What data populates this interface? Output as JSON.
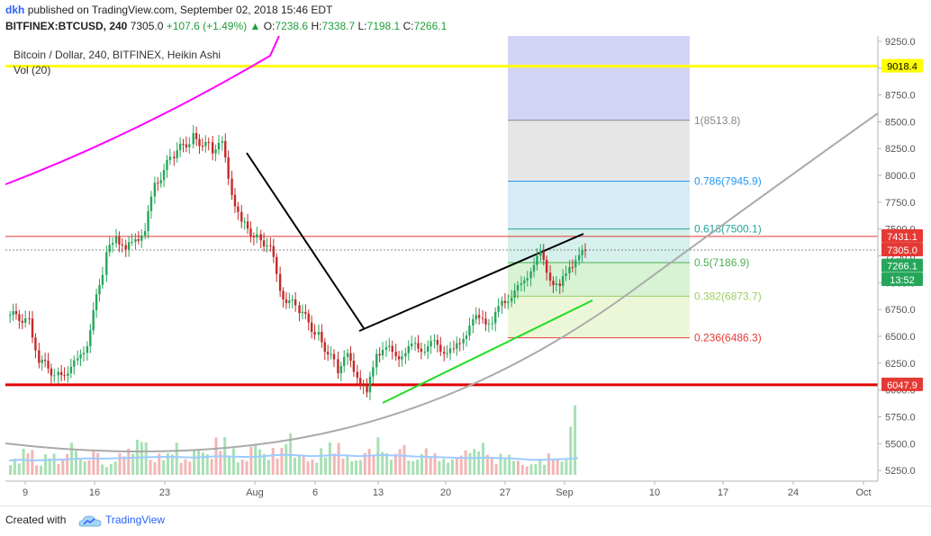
{
  "header": {
    "user": "dkh",
    "published_text": "published on TradingView.com, September 02, 2018 15:46 EDT",
    "symbol": "BITFINEX:BTCUSD, 240",
    "last": "7305.0",
    "change": "+107.6 (+1.49%)",
    "o_label": "O:",
    "o_value": "7238.6",
    "h_label": "H:",
    "h_value": "7338.7",
    "l_label": "L:",
    "l_value": "7198.1",
    "c_label": "C:",
    "c_value": "7266.1"
  },
  "colors": {
    "up_candle": "#26a65b",
    "down_candle": "#c62828",
    "volume_up": "#a8e0b4",
    "volume_down": "#f3b5b5",
    "volume_ma": "#9ecbff",
    "support_line": "#e00000",
    "resistance_line": "#ffff00",
    "magenta_curve": "#ff00ff",
    "green_trend": "#22dd22"
  },
  "chart_data": {
    "type": "line",
    "title": "Bitcoin / Dollar, 240, BITFINEX, Heikin Ashi",
    "subtitle": "Vol (20)",
    "ylim": [
      5150,
      9300
    ],
    "y_ticks": [
      "9250.0",
      "9000.0",
      "8750.0",
      "8500.0",
      "8250.0",
      "8000.0",
      "7750.0",
      "7500.0",
      "7250.0",
      "7000.0",
      "6750.0",
      "6500.0",
      "6250.0",
      "6000.0",
      "5750.0",
      "5500.0",
      "5250.0"
    ],
    "x_ticks": [
      "9",
      "16",
      "23",
      "Aug",
      "6",
      "13",
      "20",
      "27",
      "Sep",
      "10",
      "17",
      "24",
      "Oct"
    ],
    "close_series": {
      "x": [
        0,
        2,
        3,
        5,
        6,
        7,
        8,
        10,
        11,
        12,
        13,
        14,
        15,
        17,
        19,
        21,
        22,
        23,
        24,
        26,
        27,
        28,
        30,
        32,
        34,
        35,
        36,
        37,
        38,
        39,
        40,
        41,
        42,
        43,
        44,
        45,
        46,
        47,
        48,
        49,
        50,
        51,
        52,
        53,
        54,
        55,
        56,
        57,
        58,
        59
      ],
      "y": [
        6700,
        6650,
        6280,
        6130,
        6200,
        6250,
        6450,
        7250,
        7450,
        7300,
        7400,
        7500,
        7900,
        8200,
        8350,
        8250,
        8280,
        7850,
        7550,
        7400,
        7350,
        6900,
        6750,
        6500,
        6200,
        6300,
        6150,
        5950,
        6350,
        6400,
        6300,
        6370,
        6400,
        6400,
        6420,
        6380,
        6350,
        6500,
        6650,
        6660,
        6640,
        6800,
        6900,
        6950,
        7150,
        7250,
        7050,
        6950,
        7150,
        7266
      ]
    },
    "heikin_ashi_last": 7266.1,
    "price_labels": [
      {
        "label": "9018.4",
        "value": 9018.4,
        "color": "#ffff00"
      },
      {
        "label": "7431.1",
        "value": 7431.1,
        "color": "#e53935"
      },
      {
        "label": "7305.0",
        "value": 7305.0,
        "color": "#e53935"
      },
      {
        "label": "7266.1",
        "value": 7266.1,
        "color": "#26a65b"
      },
      {
        "label": "13:52",
        "value": 7060,
        "color": "#26a65b"
      },
      {
        "label": "6047.9",
        "value": 6047.9,
        "color": "#e53935"
      }
    ],
    "horizontal_lines": [
      {
        "value": 9018.4,
        "color": "#ffff00"
      },
      {
        "value": 6047.9,
        "color": "#e00000"
      },
      {
        "value": 7431.1,
        "color": "#e53935"
      },
      {
        "value": 7305.0,
        "color": "#888888"
      }
    ],
    "fib_levels": [
      {
        "label": "1(8513.8)",
        "value": 8513.8,
        "color": "#888888",
        "fill": "#e6e6e6"
      },
      {
        "label": "0.786(7945.9)",
        "value": 7945.9,
        "color": "#2196f3",
        "fill": "#d8ecf7"
      },
      {
        "label": "0.618(7500.1)",
        "value": 7500.1,
        "color": "#26a69a",
        "fill": "#d6f0ec"
      },
      {
        "label": "0.5(7186.9)",
        "value": 7186.9,
        "color": "#4caf50",
        "fill": "#d8f2d4"
      },
      {
        "label": "0.382(6873.7)",
        "value": 6873.7,
        "color": "#9ccc65",
        "fill": "#ecf7d8"
      },
      {
        "label": "0.236(6486.3)",
        "value": 6486.3,
        "color": "#e53935",
        "fill": "#f3f8d8"
      }
    ],
    "fib_top_fill": "#d3d3f5",
    "volume": {
      "values": [
        0.3,
        0.5,
        0.2,
        0.4,
        0.3,
        0.6,
        0.3,
        0.5,
        0.2,
        0.4,
        0.5,
        0.7,
        0.3,
        0.4,
        0.6,
        0.3,
        0.5,
        0.4,
        0.7,
        0.5,
        0.3,
        0.6,
        0.4,
        0.5,
        0.8,
        0.4,
        0.3,
        0.5,
        0.6,
        0.4,
        0.3,
        0.5,
        0.7,
        0.4,
        0.6,
        0.3,
        0.5,
        0.4,
        0.3,
        0.4,
        0.5,
        0.6,
        0.3,
        0.4,
        0.3,
        0.2,
        0.3,
        0.4,
        0.3,
        1.0
      ],
      "ma": [
        0.4,
        0.42,
        0.4,
        0.41,
        0.42,
        0.43,
        0.45,
        0.46,
        0.45,
        0.46,
        0.47,
        0.48,
        0.49,
        0.5,
        0.5,
        0.49,
        0.48,
        0.5,
        0.52,
        0.51,
        0.5,
        0.5,
        0.52,
        0.55,
        0.56,
        0.54,
        0.52,
        0.53,
        0.55,
        0.54,
        0.52,
        0.53,
        0.55,
        0.54,
        0.53,
        0.51,
        0.5,
        0.49,
        0.48,
        0.47,
        0.47,
        0.48,
        0.47,
        0.46,
        0.44,
        0.42,
        0.42,
        0.43,
        0.44,
        0.47
      ]
    }
  },
  "footer": {
    "created_with": "Created with",
    "brand": "TradingView"
  }
}
